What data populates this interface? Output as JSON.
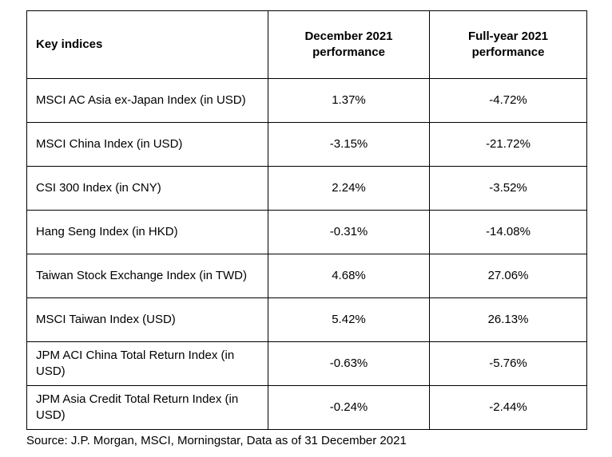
{
  "table": {
    "headers": {
      "key": "Key indices",
      "december_line1": "December 2021",
      "december_line2": "performance",
      "fullyear_line1": "Full-year 2021",
      "fullyear_line2": "performance"
    },
    "rows": [
      {
        "name": "MSCI AC Asia ex-Japan Index (in USD)",
        "december": "1.37%",
        "full_year": "-4.72%"
      },
      {
        "name": "MSCI China Index (in USD)",
        "december": "-3.15%",
        "full_year": "-21.72%"
      },
      {
        "name": "CSI 300 Index (in CNY)",
        "december": "2.24%",
        "full_year": "-3.52%"
      },
      {
        "name": "Hang Seng Index (in HKD)",
        "december": "-0.31%",
        "full_year": "-14.08%"
      },
      {
        "name": "Taiwan Stock Exchange Index (in TWD)",
        "december": "4.68%",
        "full_year": "27.06%"
      },
      {
        "name": "MSCI Taiwan Index (USD)",
        "december": "5.42%",
        "full_year": "26.13%"
      },
      {
        "name": "JPM ACI China Total Return Index (in USD)",
        "december": "-0.63%",
        "full_year": "-5.76%"
      },
      {
        "name": "JPM Asia Credit Total Return Index (in USD)",
        "december": "-0.24%",
        "full_year": "-2.44%"
      }
    ]
  },
  "source": "Source: J.P. Morgan, MSCI, Morningstar, Data as of 31 December 2021"
}
